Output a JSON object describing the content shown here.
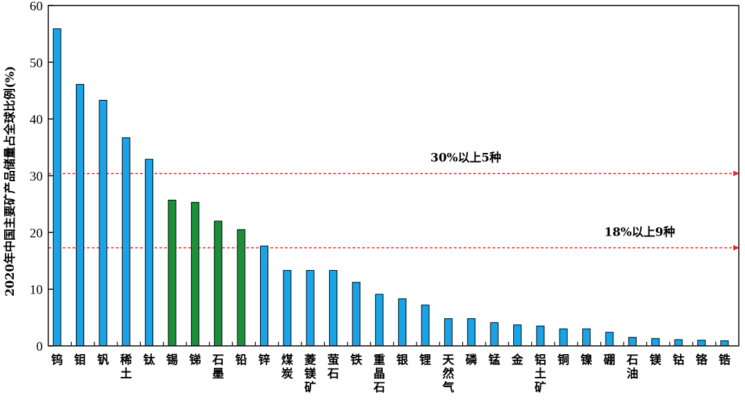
{
  "chart_data": {
    "type": "bar",
    "ylabel": "2020年中国主要矿产品储量占全球比例(%)",
    "ylim": [
      0,
      60
    ],
    "yticks": [
      0,
      10,
      20,
      30,
      40,
      50,
      60
    ],
    "grid": false,
    "categories": [
      "钨",
      "钼",
      "钒",
      "稀土",
      "钛",
      "锡",
      "锑",
      "石墨",
      "铅",
      "锌",
      "煤炭",
      "菱镁矿",
      "萤石",
      "铁",
      "重晶石",
      "银",
      "锂",
      "天然气",
      "磷",
      "锰",
      "金",
      "铝土矿",
      "铜",
      "镍",
      "硼",
      "石油",
      "镁",
      "钴",
      "铬",
      "锆"
    ],
    "values": [
      55.9,
      46.1,
      43.3,
      36.7,
      32.9,
      25.7,
      25.3,
      22.0,
      20.5,
      17.6,
      13.3,
      13.3,
      13.3,
      11.2,
      9.1,
      8.3,
      7.2,
      4.8,
      4.8,
      4.1,
      3.7,
      3.5,
      3.0,
      3.0,
      2.4,
      1.5,
      1.3,
      1.1,
      1.0,
      0.9
    ],
    "colors": [
      "blue",
      "blue",
      "blue",
      "blue",
      "blue",
      "green",
      "green",
      "green",
      "green",
      "blue",
      "blue",
      "blue",
      "blue",
      "blue",
      "blue",
      "blue",
      "blue",
      "blue",
      "blue",
      "blue",
      "blue",
      "blue",
      "blue",
      "blue",
      "blue",
      "blue",
      "blue",
      "blue",
      "blue",
      "blue"
    ],
    "palette": {
      "blue": "#1aa3e6",
      "green": "#1c8f3a",
      "bar_stroke": "#000000",
      "threshold": "#e8262a"
    },
    "thresholds": [
      {
        "value": 30.4,
        "label": "30%以上5种"
      },
      {
        "value": 17.3,
        "label": "18%以上9种"
      }
    ]
  }
}
